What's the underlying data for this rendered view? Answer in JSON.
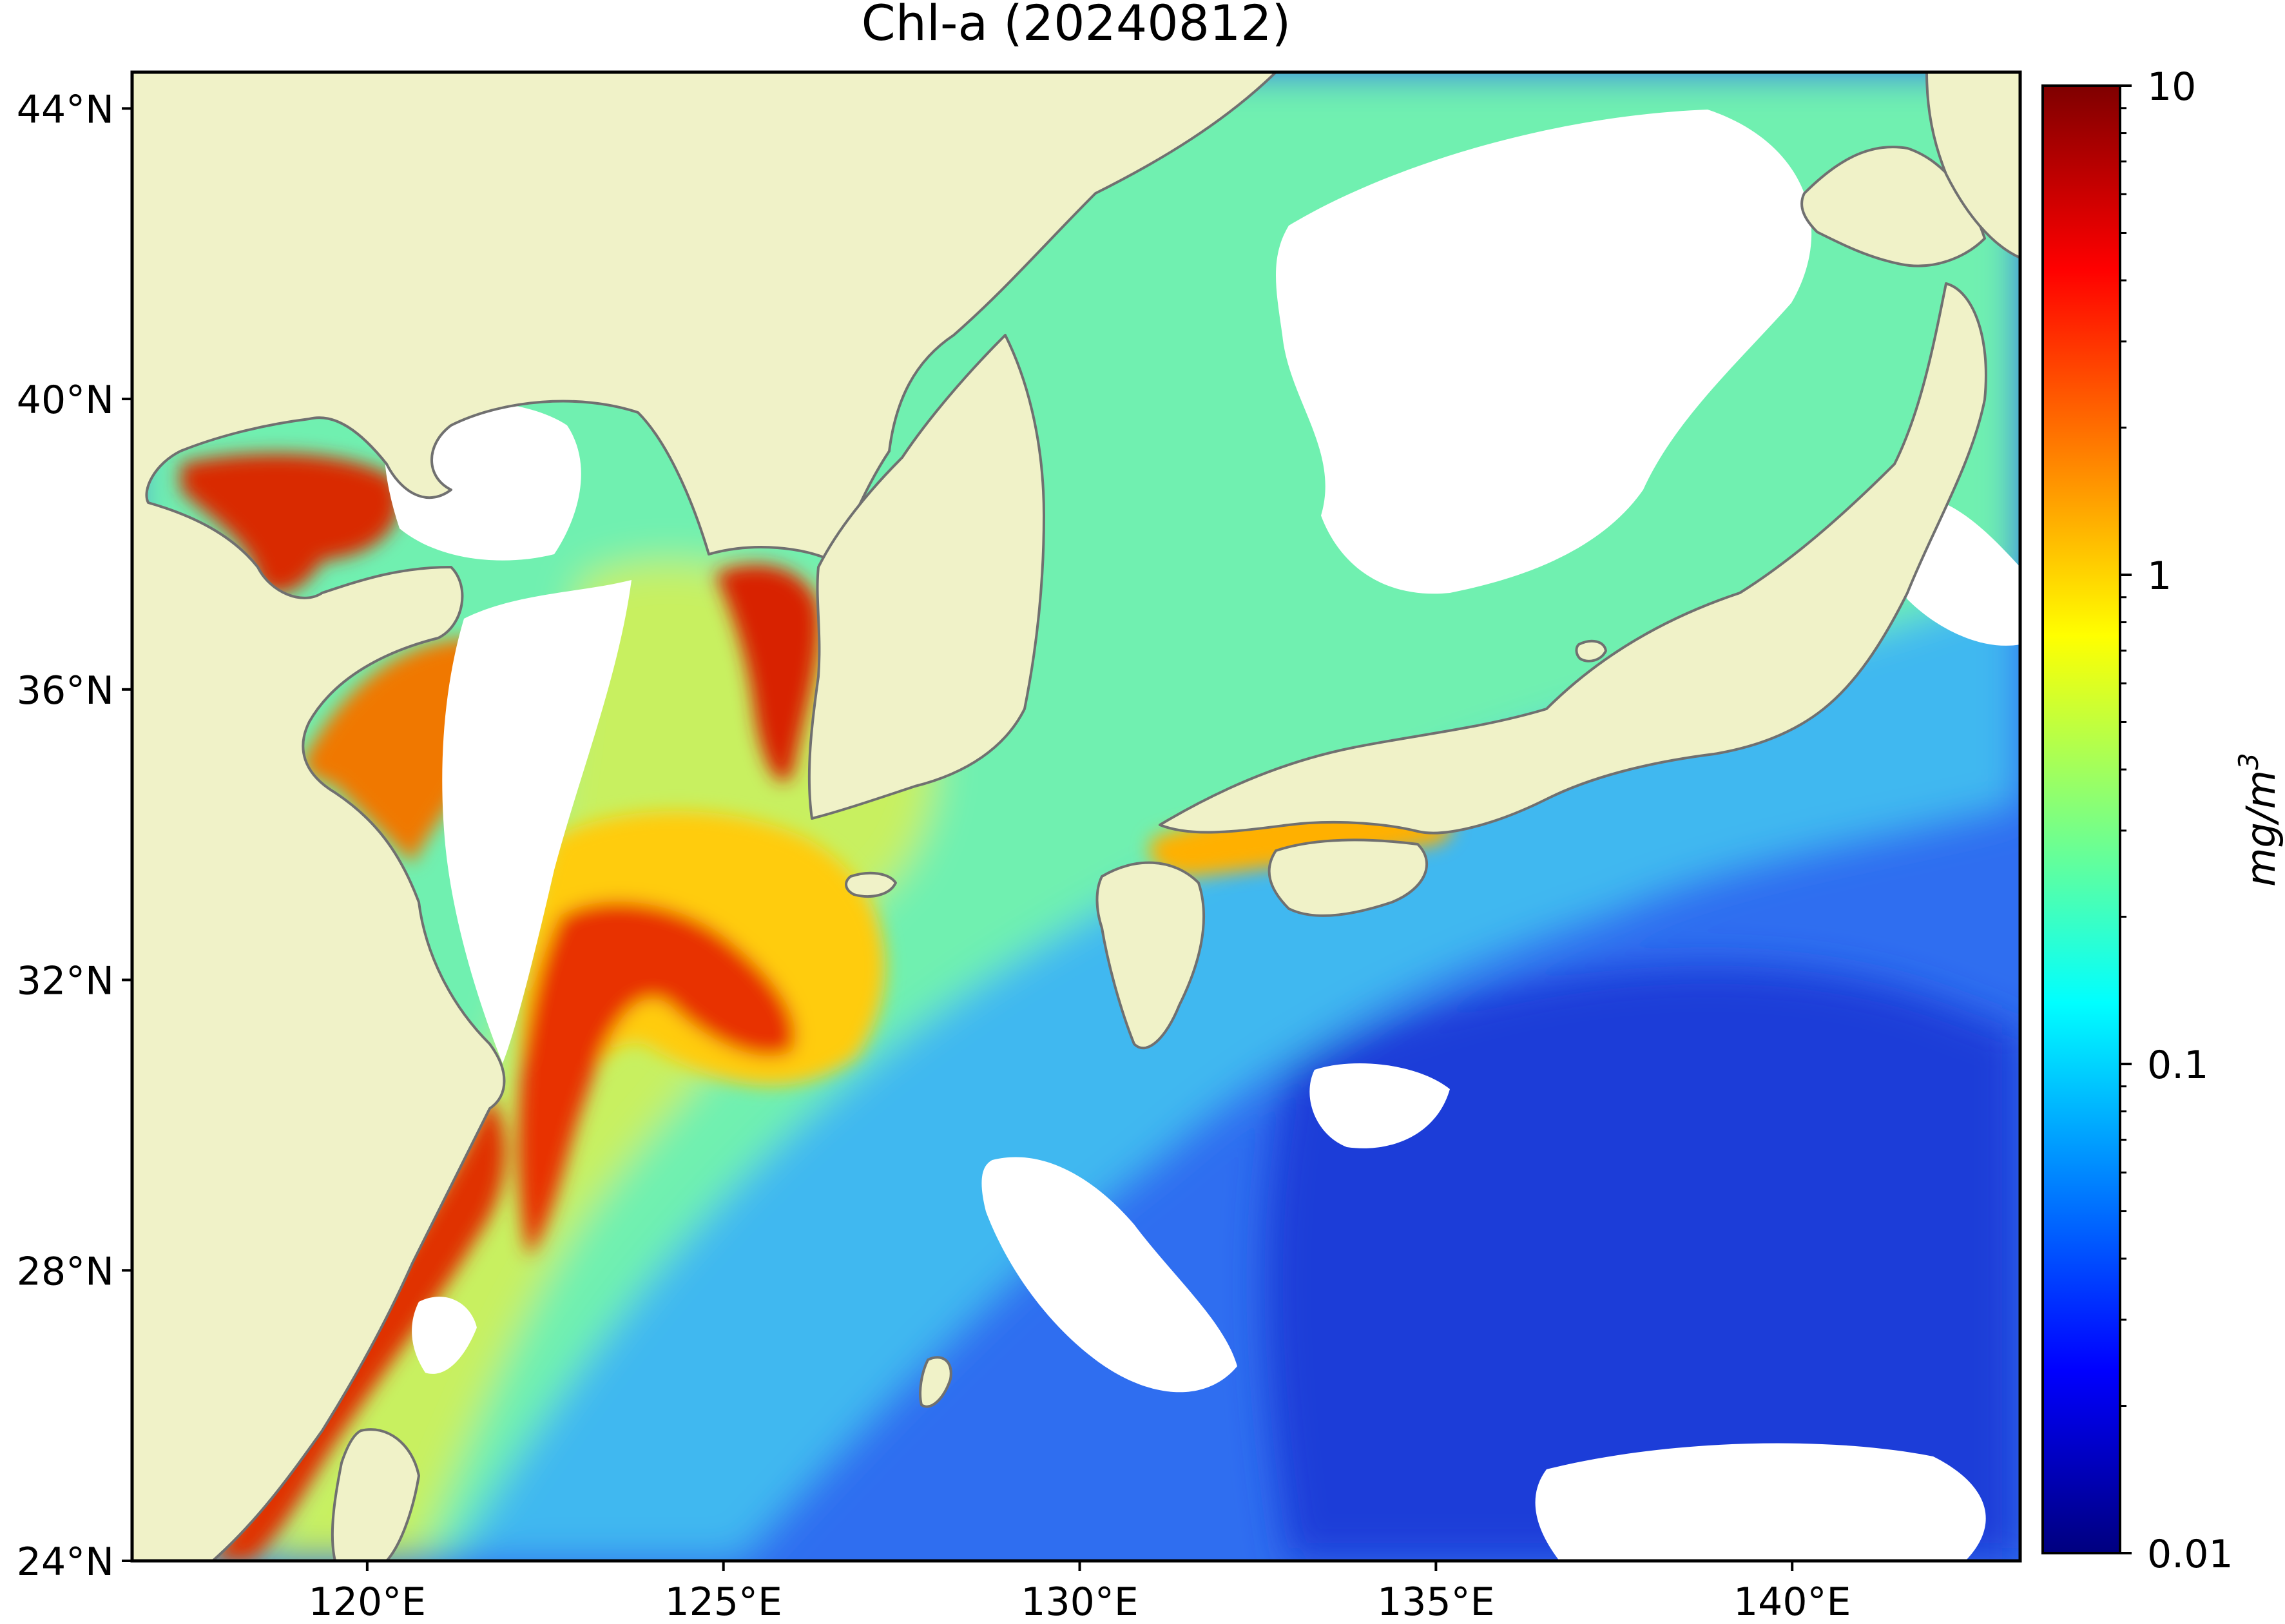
{
  "title": "Chl-a (20240812)",
  "map": {
    "lat_ticks": [
      "24°N",
      "28°N",
      "32°N",
      "36°N",
      "40°N",
      "44°N"
    ],
    "lon_ticks": [
      "120°E",
      "125°E",
      "130°E",
      "135°E",
      "140°E"
    ],
    "extent": {
      "lon_min": 116.7,
      "lon_max": 143.2,
      "lat_min": 24,
      "lat_max": 44.5
    },
    "colors": {
      "land": "#f0f2c8",
      "no_data": "#ffffff",
      "coastline": "#707070",
      "frame": "#000000"
    }
  },
  "colorbar": {
    "label": "mg/m³",
    "label_base": "mg/m",
    "label_exp": "3",
    "scale": "log",
    "tick_labels": [
      "0.01",
      "0.1",
      "1",
      "10"
    ],
    "ticks": [
      0.01,
      0.1,
      1,
      10
    ],
    "range": [
      0.01,
      10
    ],
    "colormap": "jet",
    "stops": [
      "#00007f",
      "#0000ff",
      "#007fff",
      "#00ffff",
      "#7fff7f",
      "#ffff00",
      "#ff7f00",
      "#ff0000",
      "#7f0000"
    ]
  }
}
